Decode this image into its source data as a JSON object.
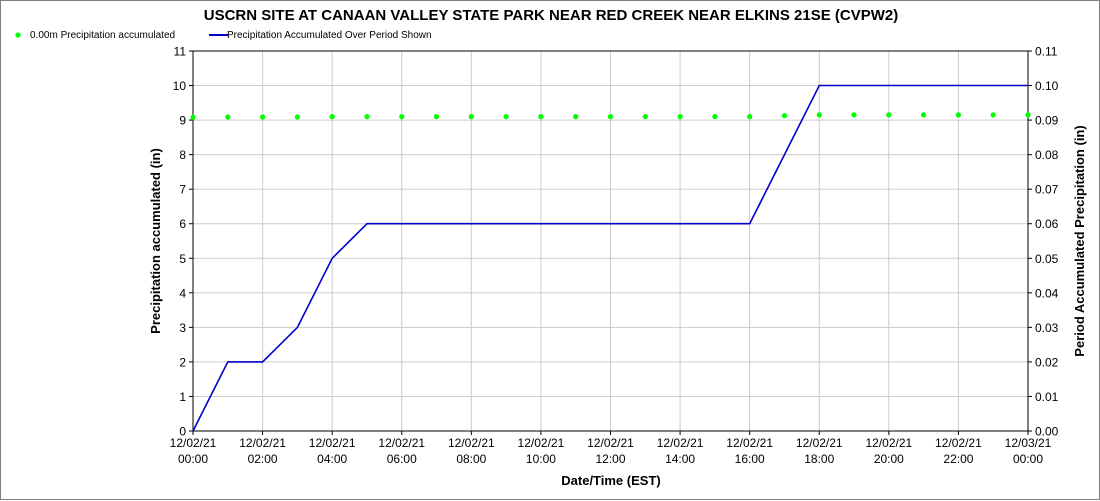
{
  "chart_data": {
    "type": "line",
    "title": "USCRN SITE AT CANAAN VALLEY STATE PARK NEAR RED CREEK NEAR ELKINS 21SE (CVPW2)",
    "xlabel": "Date/Time (EST)",
    "ylabel_left": "Precipitation accumulated (in)",
    "ylabel_right": "Period Accumulated Precipitation (in)",
    "x_hours_range": [
      0,
      24
    ],
    "ylim_left": [
      0,
      11
    ],
    "ylim_right": [
      0,
      0.11
    ],
    "y_ticks_left": [
      "0",
      "1",
      "2",
      "3",
      "4",
      "5",
      "6",
      "7",
      "8",
      "9",
      "10",
      "11"
    ],
    "y_ticks_right": [
      "0.00",
      "0.01",
      "0.02",
      "0.03",
      "0.04",
      "0.05",
      "0.06",
      "0.07",
      "0.08",
      "0.09",
      "0.10",
      "0.11"
    ],
    "x_ticks": [
      {
        "date": "12/02/21",
        "time": "00:00"
      },
      {
        "date": "12/02/21",
        "time": "02:00"
      },
      {
        "date": "12/02/21",
        "time": "04:00"
      },
      {
        "date": "12/02/21",
        "time": "06:00"
      },
      {
        "date": "12/02/21",
        "time": "08:00"
      },
      {
        "date": "12/02/21",
        "time": "10:00"
      },
      {
        "date": "12/02/21",
        "time": "12:00"
      },
      {
        "date": "12/02/21",
        "time": "14:00"
      },
      {
        "date": "12/02/21",
        "time": "16:00"
      },
      {
        "date": "12/02/21",
        "time": "18:00"
      },
      {
        "date": "12/02/21",
        "time": "20:00"
      },
      {
        "date": "12/02/21",
        "time": "22:00"
      },
      {
        "date": "12/03/21",
        "time": "00:00"
      }
    ],
    "grid": true,
    "legend_placement": "top-left",
    "series": [
      {
        "name": "0.00m Precipitation accumulated",
        "axis": "left",
        "style": "points",
        "color": "#00ff00",
        "x": [
          0,
          1,
          2,
          3,
          4,
          5,
          6,
          7,
          8,
          9,
          10,
          11,
          12,
          13,
          14,
          15,
          16,
          17,
          18,
          19,
          20,
          21,
          22,
          23,
          24
        ],
        "y": [
          9.08,
          9.09,
          9.09,
          9.09,
          9.1,
          9.1,
          9.1,
          9.1,
          9.1,
          9.1,
          9.1,
          9.1,
          9.1,
          9.1,
          9.1,
          9.1,
          9.1,
          9.13,
          9.15,
          9.15,
          9.15,
          9.15,
          9.15,
          9.15,
          9.15
        ]
      },
      {
        "name": "Precipitation Accumulated Over Period Shown",
        "axis": "right",
        "style": "line",
        "color": "#0000cc",
        "x": [
          0,
          1,
          2,
          3,
          4,
          5,
          6,
          7,
          8,
          9,
          10,
          11,
          12,
          13,
          14,
          15,
          16,
          17,
          18,
          19,
          20,
          21,
          22,
          23,
          24
        ],
        "y": [
          0,
          0.02,
          0.02,
          0.03,
          0.05,
          0.06,
          0.06,
          0.06,
          0.06,
          0.06,
          0.06,
          0.06,
          0.06,
          0.06,
          0.06,
          0.06,
          0.06,
          0.08,
          0.1,
          0.1,
          0.1,
          0.1,
          0.1,
          0.1,
          0.1
        ]
      }
    ]
  }
}
